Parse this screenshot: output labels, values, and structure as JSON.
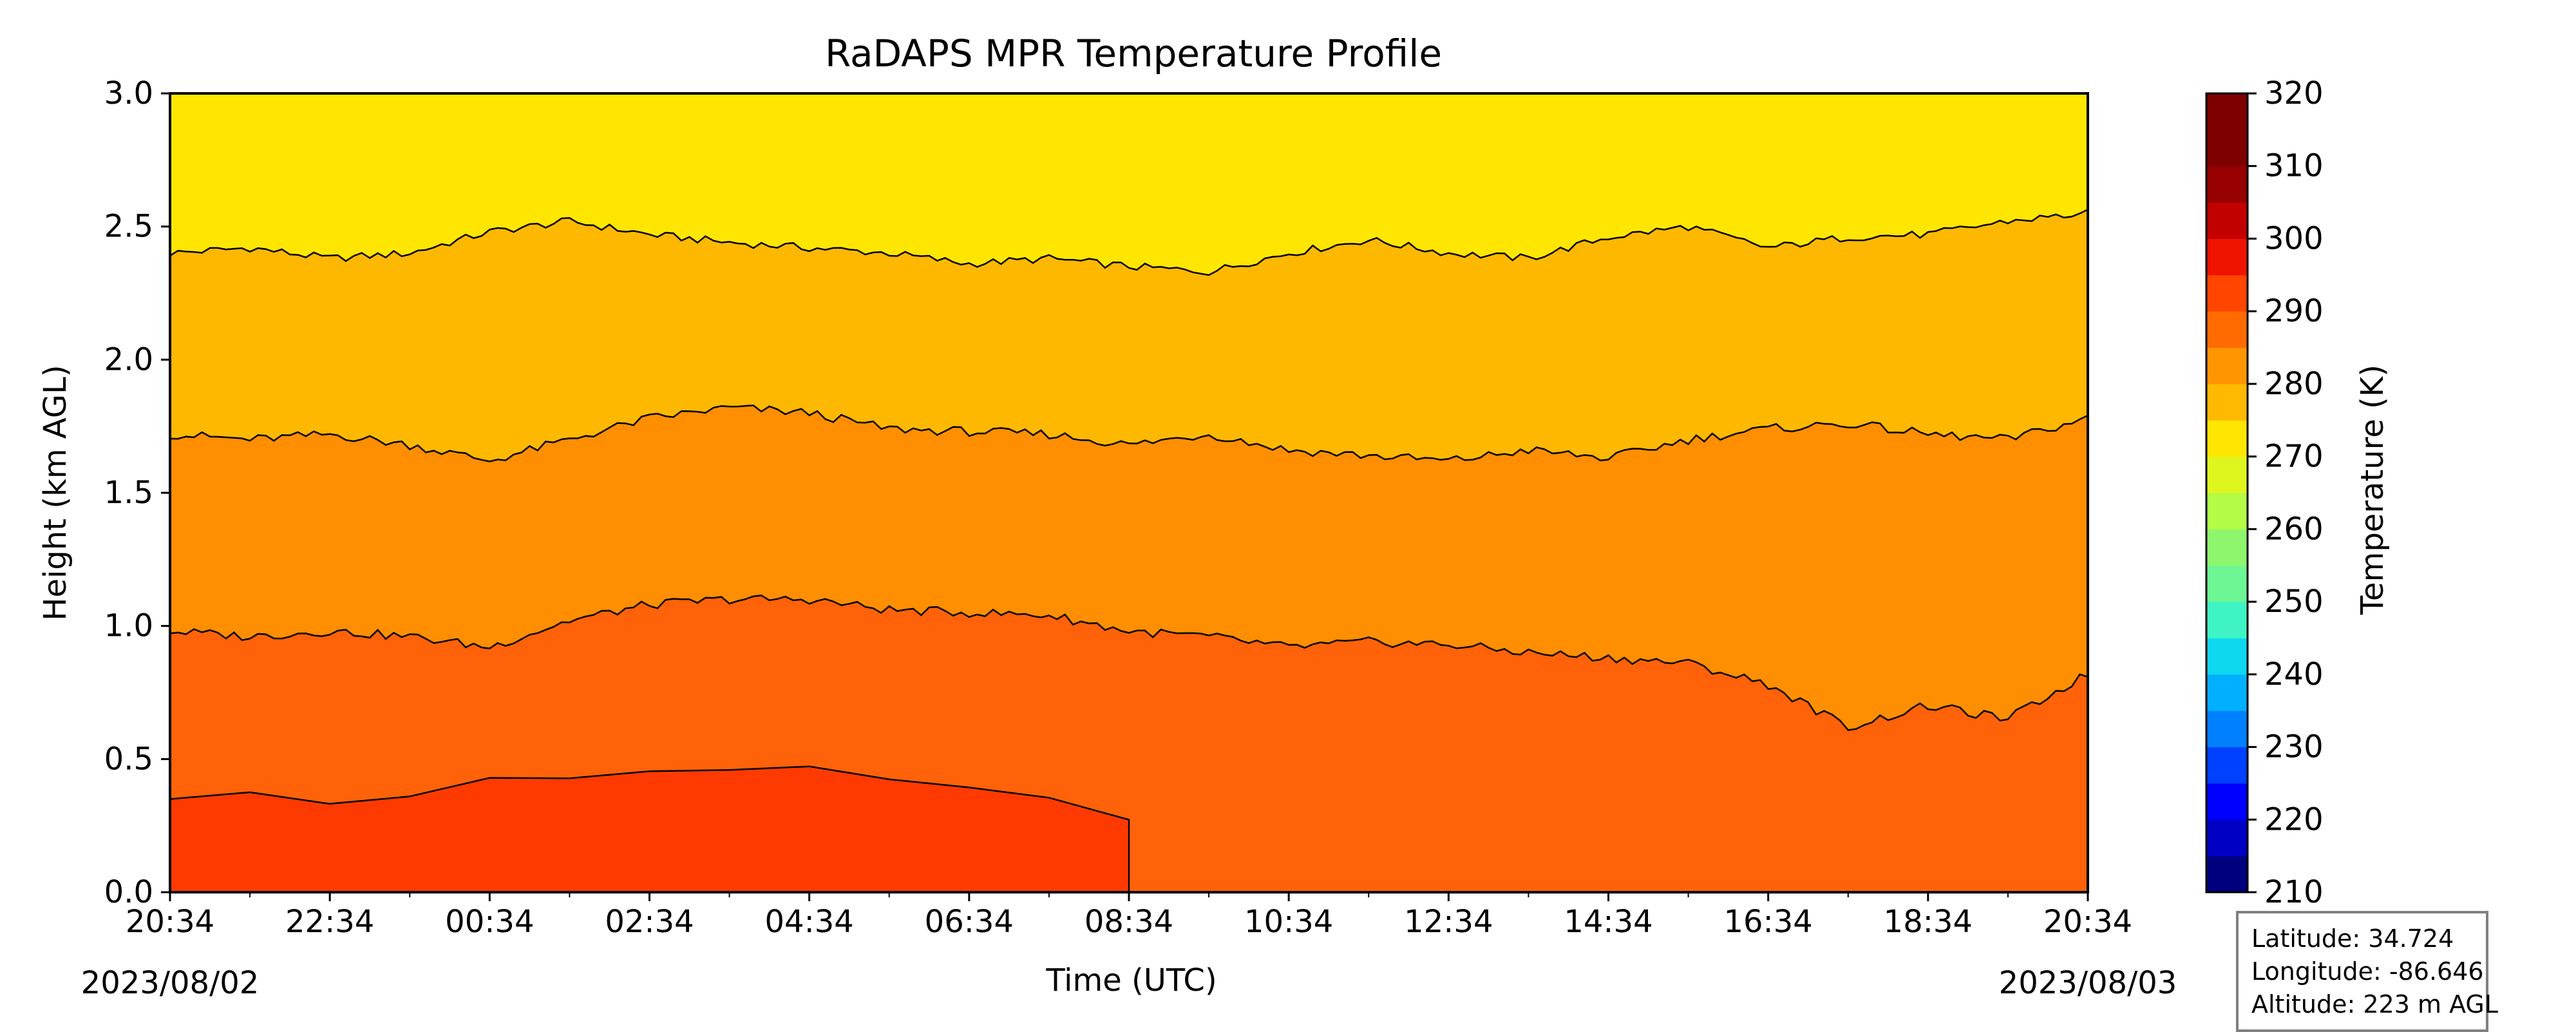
{
  "chart_data": {
    "type": "heatmap",
    "title": "RaDAPS MPR Temperature Profile",
    "xlabel": "Time (UTC)",
    "ylabel": "Height (km AGL)",
    "x_ticks": [
      "20:34",
      "22:34",
      "00:34",
      "02:34",
      "04:34",
      "06:34",
      "08:34",
      "10:34",
      "12:34",
      "14:34",
      "16:34",
      "18:34",
      "20:34"
    ],
    "x_hours": [
      0,
      2,
      4,
      6,
      8,
      10,
      12,
      14,
      16,
      18,
      20,
      22,
      24
    ],
    "start_date": "2023/08/02",
    "end_date": "2023/08/03",
    "y_ticks": [
      "0.0",
      "0.5",
      "1.0",
      "1.5",
      "2.0",
      "2.5",
      "3.0"
    ],
    "y_values": [
      0.0,
      0.5,
      1.0,
      1.5,
      2.0,
      2.5,
      3.0
    ],
    "ylim": [
      0.0,
      3.0
    ],
    "xlim_hours": [
      0,
      24
    ],
    "colorbar": {
      "label": "Temperature (K)",
      "range": [
        210,
        320
      ],
      "step": 5,
      "ticks": [
        "210",
        "220",
        "230",
        "240",
        "250",
        "260",
        "270",
        "280",
        "290",
        "300",
        "310",
        "320"
      ],
      "tick_values": [
        210,
        220,
        230,
        240,
        250,
        260,
        270,
        280,
        290,
        300,
        310,
        320
      ],
      "colors": [
        "#00007f",
        "#0000c4",
        "#0000ff",
        "#0040ff",
        "#0080ff",
        "#00b0ff",
        "#0dd8f0",
        "#3ff4c4",
        "#6cf794",
        "#8ef66d",
        "#b4fb45",
        "#dff51e",
        "#ffe600",
        "#ffb900",
        "#ff9500",
        "#ff6b00",
        "#ff4500",
        "#f01300",
        "#c30000",
        "#960000",
        "#7f0000"
      ]
    },
    "filled_bands": [
      {
        "range": [
          300,
          305
        ],
        "color": "#ff3a00"
      },
      {
        "range": [
          295,
          300
        ],
        "color": "#ff6208"
      },
      {
        "range": [
          290,
          295
        ],
        "color": "#ff8e00"
      },
      {
        "range": [
          285,
          290
        ],
        "color": "#ffb800"
      },
      {
        "range": [
          280,
          285
        ],
        "color": "#ffe600"
      }
    ],
    "contours": [
      {
        "level": 285,
        "height_km": [
          2.4,
          2.42,
          2.38,
          2.4,
          2.48,
          2.52,
          2.47,
          2.44,
          2.42,
          2.4,
          2.36,
          2.38,
          2.35,
          2.33,
          2.4,
          2.45,
          2.4,
          2.38,
          2.46,
          2.5,
          2.42,
          2.46,
          2.47,
          2.52,
          2.55
        ]
      },
      {
        "level": 290,
        "height_km": [
          1.72,
          1.7,
          1.72,
          1.68,
          1.62,
          1.7,
          1.78,
          1.82,
          1.8,
          1.74,
          1.73,
          1.72,
          1.68,
          1.72,
          1.66,
          1.64,
          1.62,
          1.66,
          1.63,
          1.7,
          1.74,
          1.76,
          1.72,
          1.7,
          1.78
        ]
      },
      {
        "level": 295,
        "height_km": [
          0.98,
          0.96,
          0.98,
          0.96,
          0.92,
          1.02,
          1.08,
          1.1,
          1.1,
          1.06,
          1.05,
          1.04,
          0.98,
          0.96,
          0.92,
          0.94,
          0.93,
          0.9,
          0.88,
          0.86,
          0.78,
          0.62,
          0.7,
          0.65,
          0.82
        ]
      }
    ],
    "warm_core_300K": [
      {
        "time_h": 0.0,
        "height_km": 0.36
      },
      {
        "time_h": 1.0,
        "height_km": 0.37
      },
      {
        "time_h": 2.0,
        "height_km": 0.33
      },
      {
        "time_h": 3.0,
        "height_km": 0.36
      },
      {
        "time_h": 4.0,
        "height_km": 0.42
      },
      {
        "time_h": 5.0,
        "height_km": 0.43
      },
      {
        "time_h": 6.0,
        "height_km": 0.45
      },
      {
        "time_h": 7.0,
        "height_km": 0.46
      },
      {
        "time_h": 8.0,
        "height_km": 0.47
      },
      {
        "time_h": 9.0,
        "height_km": 0.42
      },
      {
        "time_h": 10.0,
        "height_km": 0.4
      },
      {
        "time_h": 11.0,
        "height_km": 0.35
      },
      {
        "time_h": 12.0,
        "height_km": 0.28
      }
    ],
    "info": {
      "latitude": "Latitude: 34.724",
      "longitude": "Longitude: -86.646",
      "altitude": "Altitude: 223 m AGL"
    }
  }
}
